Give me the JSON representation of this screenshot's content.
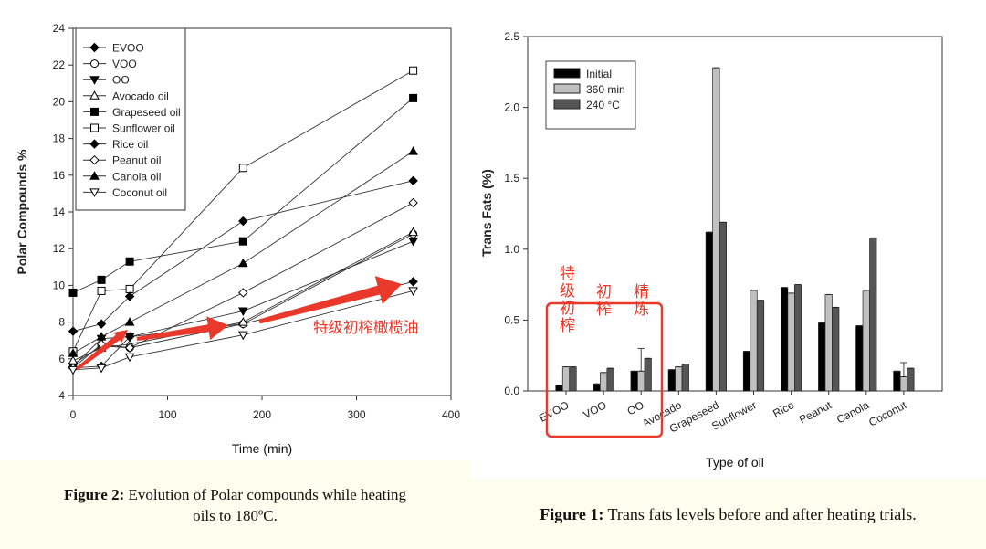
{
  "chart_data": [
    {
      "type": "line",
      "title": "",
      "xlabel": "Time (min)",
      "ylabel": "Polar Compounds %",
      "xlim": [
        0,
        400
      ],
      "ylim": [
        4,
        24
      ],
      "xticks": [
        0,
        100,
        200,
        300,
        400
      ],
      "yticks": [
        4,
        6,
        8,
        10,
        12,
        14,
        16,
        18,
        20,
        22,
        24
      ],
      "grid": false,
      "legend_position": "top-left",
      "x": [
        0,
        30,
        60,
        180,
        360
      ],
      "series": [
        {
          "name": "EVOO",
          "marker": "diamond-filled",
          "values": [
            5.5,
            5.6,
            7.2,
            7.9,
            10.2
          ]
        },
        {
          "name": "VOO",
          "marker": "circle-open",
          "values": [
            5.7,
            6.7,
            6.6,
            7.9,
            12.8
          ]
        },
        {
          "name": "OO",
          "marker": "triangle-down-filled",
          "values": [
            5.6,
            7.1,
            7.2,
            8.6,
            12.4
          ]
        },
        {
          "name": "Avocado oil",
          "marker": "triangle-up-open",
          "values": [
            5.9,
            6.6,
            6.8,
            8.0,
            12.9
          ]
        },
        {
          "name": "Grapeseed oil",
          "marker": "square-filled",
          "values": [
            9.6,
            10.3,
            11.3,
            12.4,
            20.2
          ]
        },
        {
          "name": "Sunflower oil",
          "marker": "square-open",
          "values": [
            6.4,
            9.7,
            9.8,
            16.4,
            21.7
          ]
        },
        {
          "name": "Rice oil",
          "marker": "diamond-filled",
          "values": [
            7.5,
            7.9,
            9.4,
            13.5,
            15.7
          ]
        },
        {
          "name": "Peanut oil",
          "marker": "diamond-open",
          "values": [
            5.5,
            6.8,
            6.6,
            9.6,
            14.5
          ]
        },
        {
          "name": "Canola oil",
          "marker": "triangle-up-filled",
          "values": [
            6.3,
            7.2,
            8.0,
            11.2,
            17.3
          ]
        },
        {
          "name": "Coconut oil",
          "marker": "triangle-down-open",
          "values": [
            5.4,
            5.5,
            6.1,
            7.3,
            9.7
          ]
        }
      ],
      "annotation": "特级初榨橄榄油",
      "annotation_color": "#e8392a"
    },
    {
      "type": "bar",
      "title": "",
      "xlabel": "Type of oil",
      "ylabel": "Trans Fats (%)",
      "ylim": [
        0,
        2.5
      ],
      "yticks": [
        "0.0",
        "0.5",
        "1.0",
        "1.5",
        "2.0",
        "2.5"
      ],
      "grid": false,
      "legend_position": "top-left",
      "categories": [
        "EVOO",
        "VOO",
        "OO",
        "Avocado",
        "Grapeseed",
        "Sunflower",
        "Rice",
        "Peanut",
        "Canola",
        "Coconut"
      ],
      "series": [
        {
          "name": "Initial",
          "color": "#000000",
          "values": [
            0.04,
            0.05,
            0.14,
            0.15,
            1.12,
            0.28,
            0.73,
            0.48,
            0.46,
            0.14
          ]
        },
        {
          "name": "360 min",
          "color": "#c0c0c0",
          "values": [
            0.17,
            0.13,
            0.14,
            0.17,
            2.28,
            0.71,
            0.69,
            0.68,
            0.71,
            0.1
          ]
        },
        {
          "name": "240 °C",
          "color": "#555555",
          "values": [
            0.17,
            0.16,
            0.23,
            0.19,
            1.19,
            0.64,
            0.75,
            0.59,
            1.08,
            0.16
          ]
        }
      ],
      "error_bars": [
        {
          "category": "OO",
          "series": "360 min",
          "upper": 0.3
        },
        {
          "category": "Coconut",
          "series": "360 min",
          "upper": 0.2
        }
      ],
      "annotations": [
        "特级初榨",
        "初榨",
        "精炼"
      ],
      "annotation_color": "#e8392a"
    }
  ],
  "captions": {
    "left_label": "Figure 2:",
    "left_text": " Evolution of Polar compounds while heating oils to 180ºC.",
    "right_label": "Figure 1:",
    "right_text": " Trans fats levels before and after heating trials."
  }
}
